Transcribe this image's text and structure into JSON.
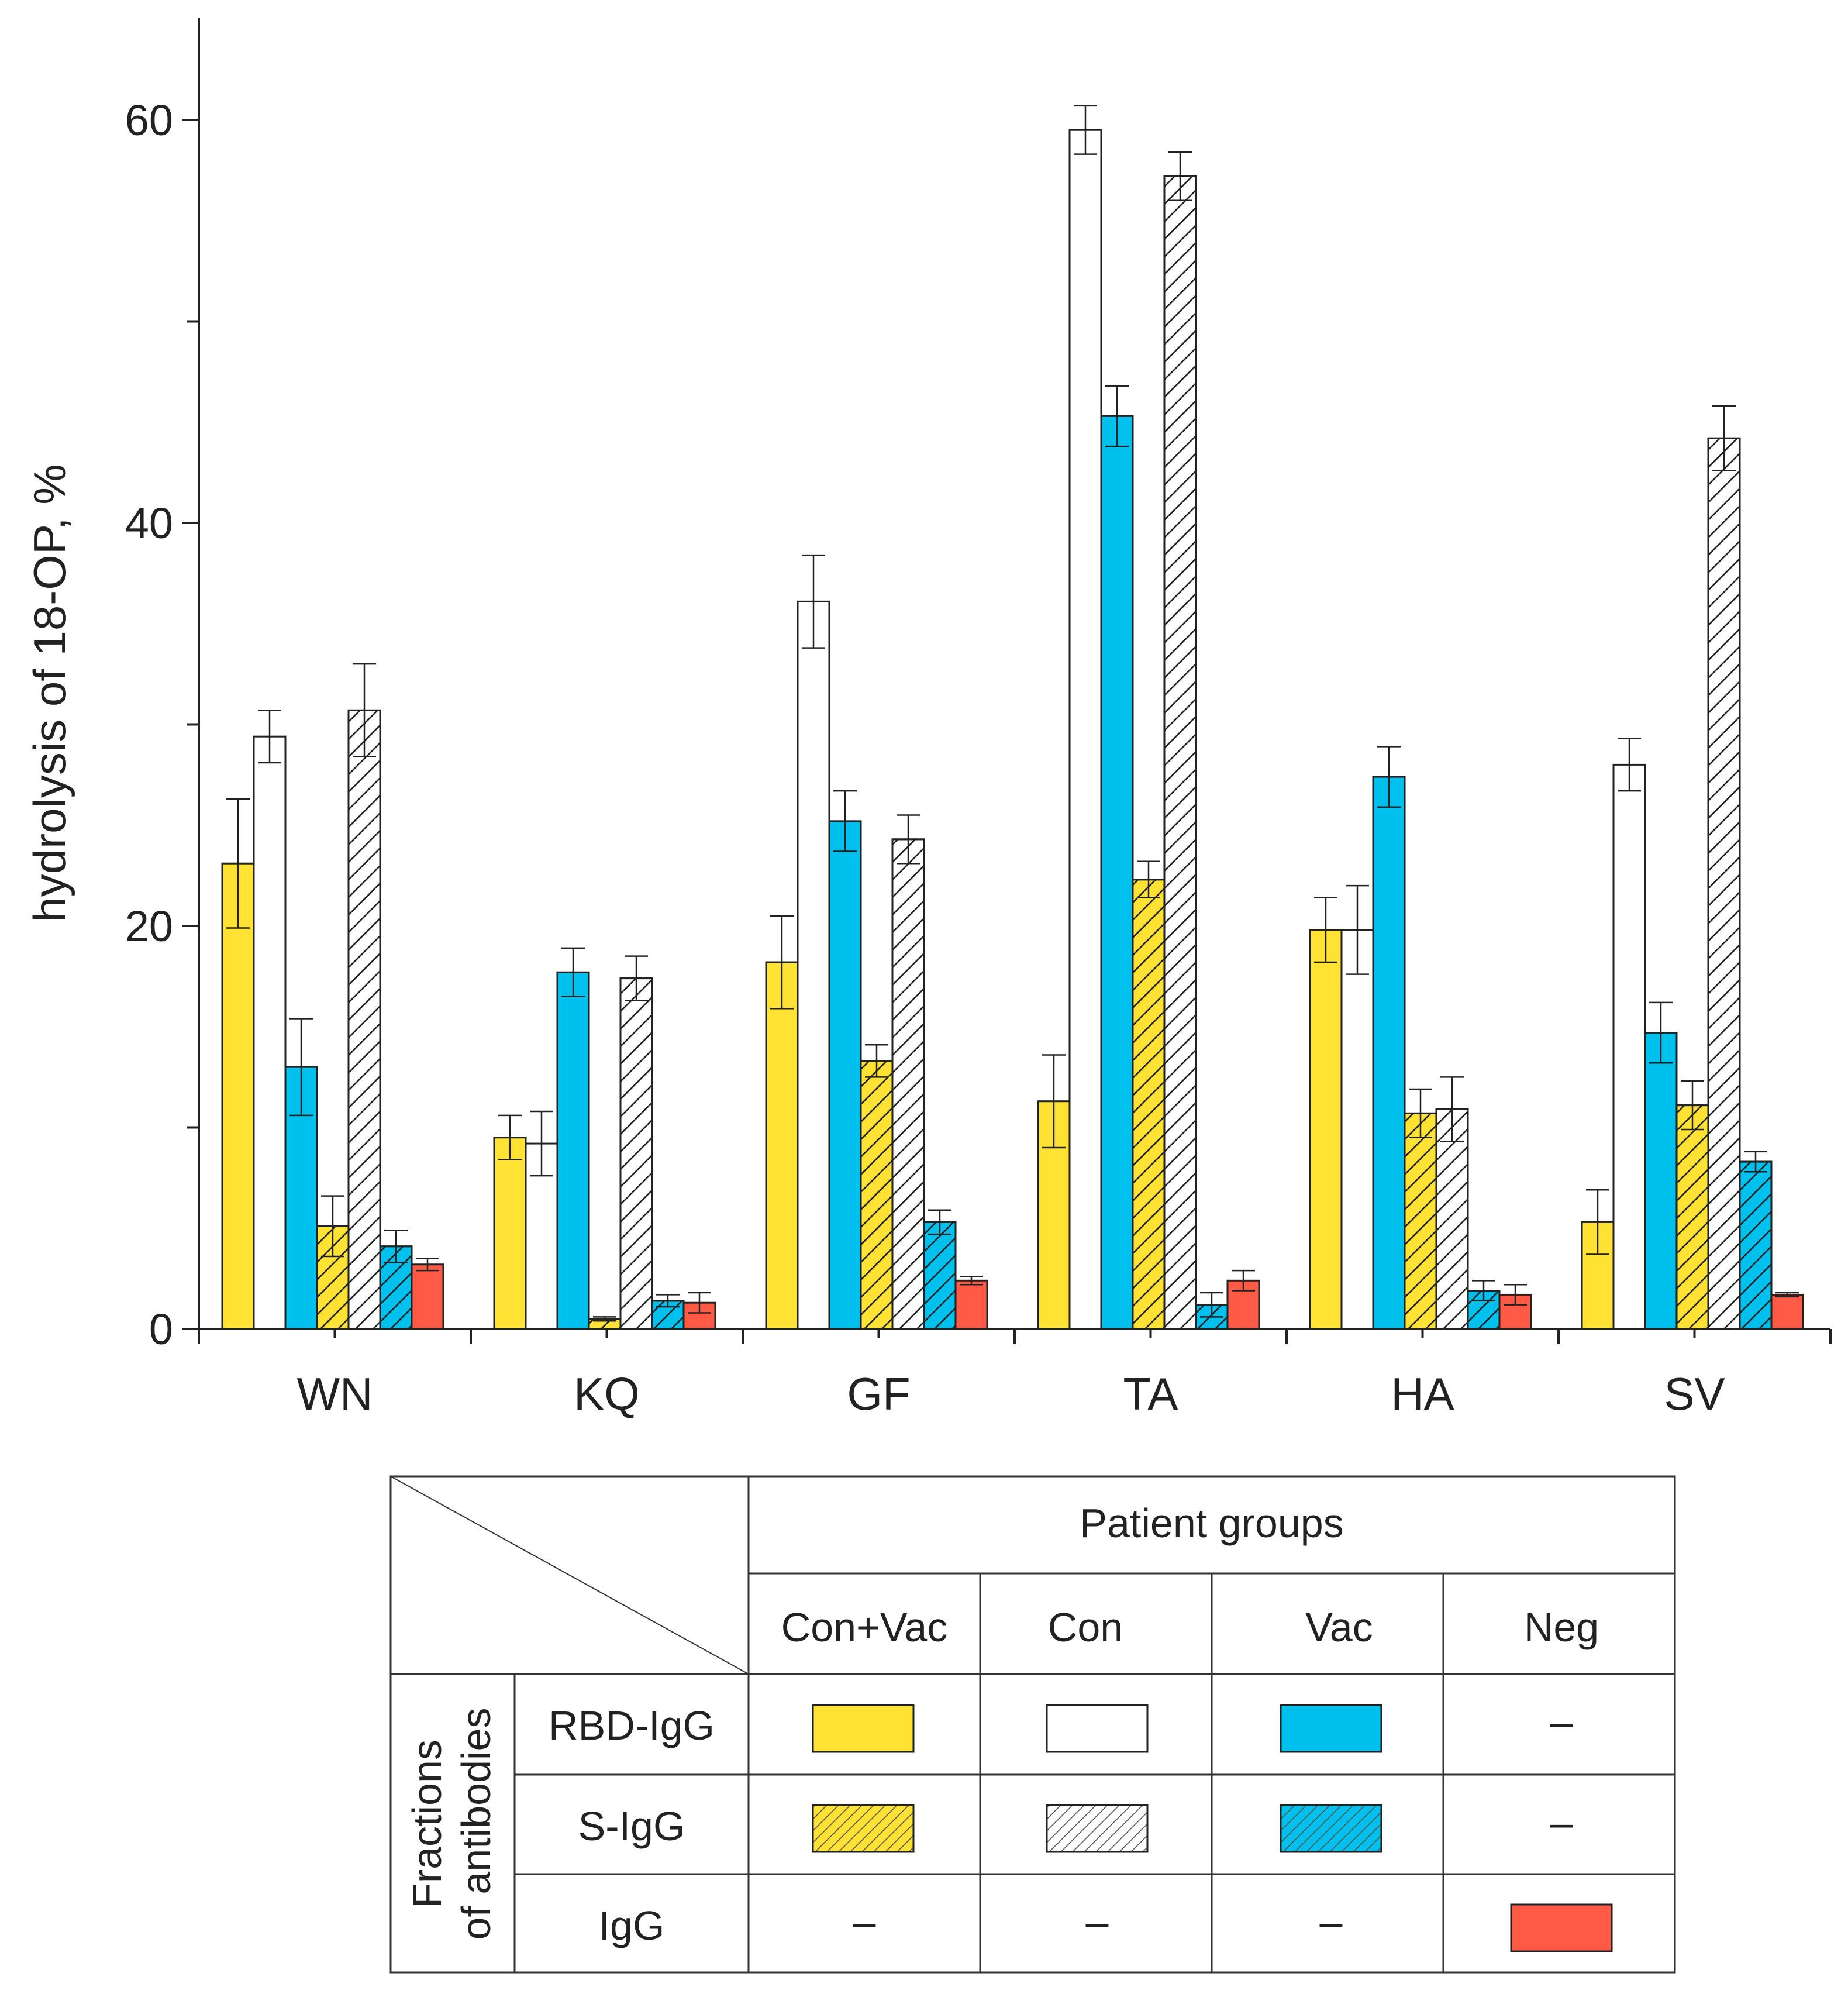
{
  "chart_data": {
    "type": "bar",
    "ylabel": "hydrolysis of 18-OP, %",
    "ylim": [
      0,
      65
    ],
    "yticks": [
      0,
      20,
      40,
      60
    ],
    "categories": [
      "WN",
      "KQ",
      "GF",
      "TA",
      "HA",
      "SV"
    ],
    "series": [
      {
        "name": "Con+Vac RBD-IgG",
        "group": "Con+Vac",
        "fraction": "RBD-IgG",
        "color": "#FFE233",
        "hatched": false,
        "values": [
          23.1,
          9.5,
          18.2,
          11.3,
          19.8,
          5.3
        ],
        "errors": [
          3.2,
          1.1,
          2.3,
          2.3,
          1.6,
          1.6
        ]
      },
      {
        "name": "Con RBD-IgG",
        "group": "Con",
        "fraction": "RBD-IgG",
        "color": "#FFFFFF",
        "hatched": false,
        "values": [
          29.4,
          9.2,
          36.1,
          59.5,
          19.8,
          28.0
        ],
        "errors": [
          1.3,
          1.6,
          2.3,
          1.2,
          2.2,
          1.3
        ]
      },
      {
        "name": "Vac RBD-IgG",
        "group": "Vac",
        "fraction": "RBD-IgG",
        "color": "#00C0EE",
        "hatched": false,
        "values": [
          13.0,
          17.7,
          25.2,
          45.3,
          27.4,
          14.7
        ],
        "errors": [
          2.4,
          1.2,
          1.5,
          1.5,
          1.5,
          1.5
        ]
      },
      {
        "name": "Con+Vac S-IgG",
        "group": "Con+Vac",
        "fraction": "S-IgG",
        "color": "#FFE233",
        "hatched": true,
        "values": [
          5.1,
          0.5,
          13.3,
          22.3,
          10.7,
          11.1
        ],
        "errors": [
          1.5,
          0.1,
          0.8,
          0.9,
          1.2,
          1.2
        ]
      },
      {
        "name": "Con S-IgG",
        "group": "Con",
        "fraction": "S-IgG",
        "color": "#FFFFFF",
        "hatched": true,
        "values": [
          30.7,
          17.4,
          24.3,
          57.2,
          10.9,
          44.2
        ],
        "errors": [
          2.3,
          1.1,
          1.2,
          1.2,
          1.6,
          1.6
        ]
      },
      {
        "name": "Vac S-IgG",
        "group": "Vac",
        "fraction": "S-IgG",
        "color": "#00C0EE",
        "hatched": true,
        "values": [
          4.1,
          1.4,
          5.3,
          1.2,
          1.9,
          8.3
        ],
        "errors": [
          0.8,
          0.3,
          0.6,
          0.6,
          0.5,
          0.5
        ]
      },
      {
        "name": "Neg IgG",
        "group": "Neg",
        "fraction": "IgG",
        "color": "#FF5A45",
        "hatched": false,
        "values": [
          3.2,
          1.3,
          2.4,
          2.4,
          1.7,
          1.7
        ],
        "errors": [
          0.3,
          0.5,
          0.2,
          0.5,
          0.5,
          0.1
        ]
      }
    ],
    "legend": {
      "header": "Patient groups",
      "columns": [
        "Con+Vac",
        "Con",
        "Vac",
        "Neg"
      ],
      "row_title_line1": "Fractions",
      "row_title_line2": "of antibodies",
      "rows": [
        "RBD-IgG",
        "S-IgG",
        "IgG"
      ],
      "dash": "–"
    }
  }
}
